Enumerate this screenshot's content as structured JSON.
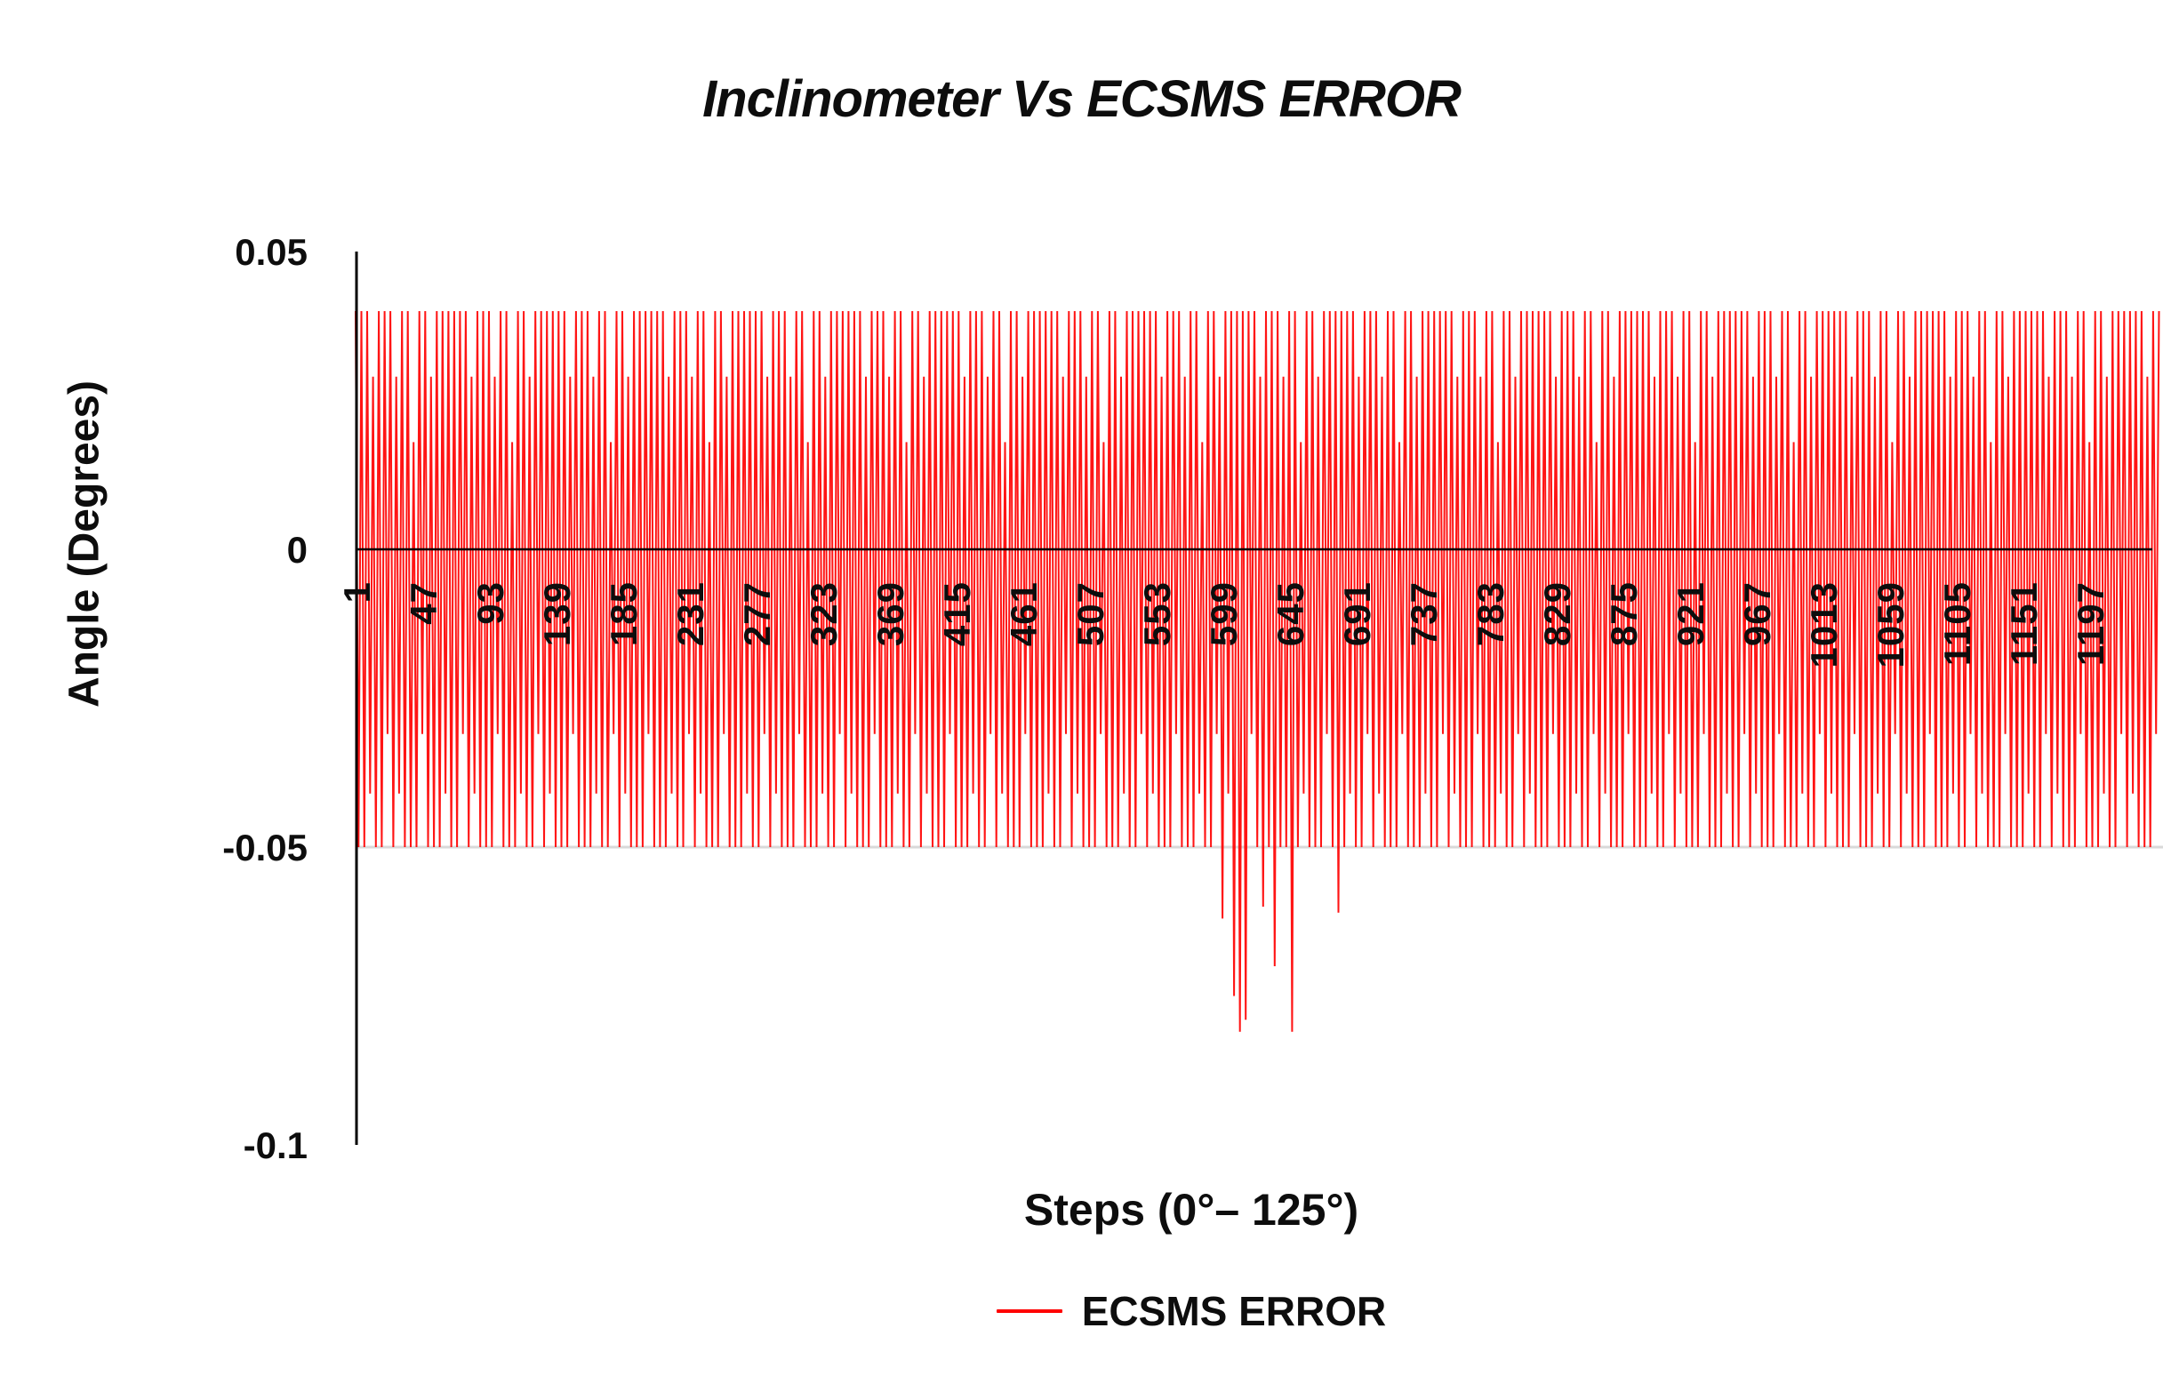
{
  "figure": {
    "title": "Inclinometer Vs ECSMS ERROR"
  },
  "chart_data": {
    "type": "line",
    "title": "Inclinometer Vs ECSMS ERROR",
    "xlabel": "Steps (0°– 125°)",
    "ylabel": "Angle (Degrees)",
    "legend_position": "bottom-center",
    "grid": "zero line black, single light-gray gridline at -0.05",
    "colors": {
      "series_red": "#FF0000",
      "axis_black": "#000000",
      "gridline_gray": "#D9D9D9",
      "text_black": "#0d0d0d"
    },
    "x_axis": {
      "min": 1,
      "max": 1245,
      "tick_interval": 46,
      "tick_labels": [
        1,
        47,
        93,
        139,
        185,
        231,
        277,
        323,
        369,
        415,
        461,
        507,
        553,
        599,
        645,
        691,
        737,
        783,
        829,
        875,
        921,
        967,
        1013,
        1059,
        1105,
        1151,
        1197
      ],
      "tick_label_rotation_deg": -90
    },
    "y_axis": {
      "min": -0.1,
      "max": 0.05,
      "tick_values": [
        0.05,
        0,
        -0.05,
        -0.1
      ],
      "tick_labels": [
        "0.05",
        "0",
        "-0.05",
        "-0.1"
      ]
    },
    "series": [
      {
        "name": "ECSMS ERROR",
        "color": "#FF0000",
        "description": "Dense sawtooth error signal alternating sign roughly every 2 steps: positive peaks mostly +0.04 (occasionally +0.029 or +0.018), negative troughs mostly -0.05 (occasionally -0.041 or -0.031). A cluster of deeper negative spikes (down to about -0.081) occurs between steps ~599 and ~679.",
        "sample_every_steps": 2,
        "positive_peaks_cycle": [
          0.04,
          0.04,
          0.04,
          0.029,
          0.04,
          0.04,
          0.04,
          0.029,
          0.04,
          0.04,
          0.018,
          0.04,
          0.04,
          0.029,
          0.04,
          0.04,
          0.04
        ],
        "negative_troughs_cycle": [
          -0.05,
          -0.05,
          -0.041,
          -0.05,
          -0.05,
          -0.031,
          -0.05,
          -0.041,
          -0.05,
          -0.05,
          -0.05,
          -0.031,
          -0.05
        ],
        "anomalies": [
          {
            "step": 599,
            "value": -0.062
          },
          {
            "step": 607,
            "value": -0.075
          },
          {
            "step": 611,
            "value": -0.081
          },
          {
            "step": 615,
            "value": -0.079
          },
          {
            "step": 627,
            "value": -0.06
          },
          {
            "step": 635,
            "value": -0.07
          },
          {
            "step": 647,
            "value": -0.081
          },
          {
            "step": 679,
            "value": -0.061
          }
        ]
      }
    ],
    "legend": [
      {
        "label": "ECSMS ERROR",
        "marker": "red-line",
        "color": "#FF0000"
      }
    ]
  }
}
